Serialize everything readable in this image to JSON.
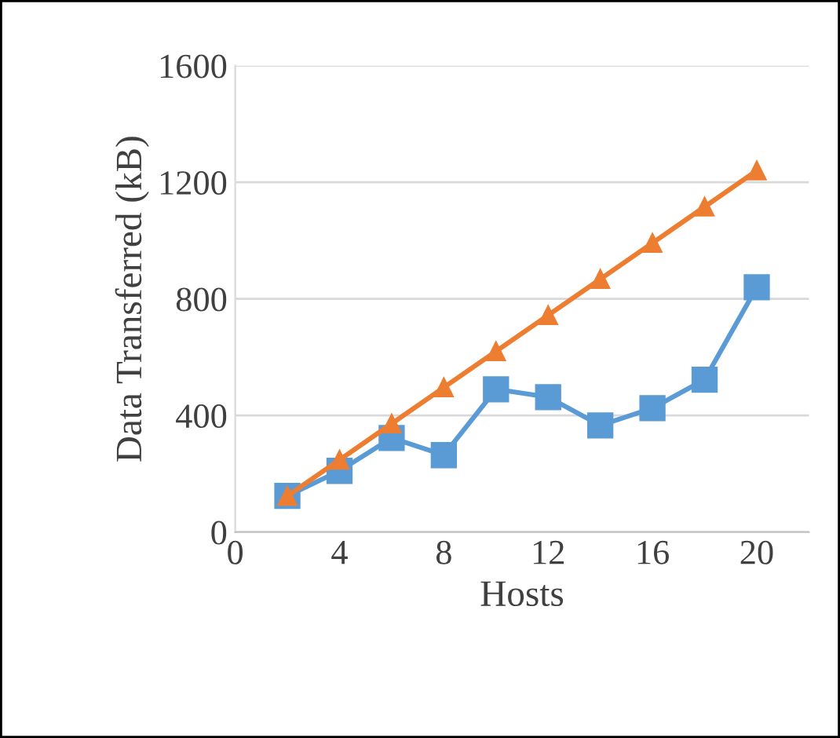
{
  "chart_data": {
    "type": "line",
    "xlabel": "Hosts",
    "ylabel": "Data Transferred (kB)",
    "x": [
      2,
      4,
      6,
      8,
      10,
      12,
      14,
      16,
      18,
      20
    ],
    "series": [
      {
        "color": "#5b9bd5",
        "marker": "square",
        "values": [
          124,
          210,
          323,
          264,
          490,
          463,
          366,
          425,
          523,
          840
        ]
      },
      {
        "color": "#ed7d31",
        "marker": "triangle",
        "values": [
          124,
          248,
          372,
          496,
          620,
          744,
          868,
          992,
          1116,
          1240
        ]
      }
    ],
    "xlim": [
      0,
      22
    ],
    "xticks": [
      0,
      4,
      8,
      12,
      16,
      20
    ],
    "ylim": [
      0,
      1600
    ],
    "yticks": [
      0,
      400,
      800,
      1200,
      1600
    ],
    "grid": "y",
    "legend": false,
    "line_style": "solid"
  }
}
